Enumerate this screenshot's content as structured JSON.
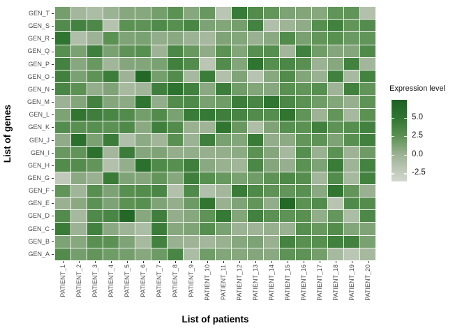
{
  "colors": {
    "axis_text": "#4d4d4d",
    "title_text": "#000000",
    "tick_mark": "#333333",
    "grid_gap": "#f7f7f5",
    "background": "#ffffff"
  },
  "chart_data": {
    "type": "heatmap",
    "title": "",
    "xlabel": "List of patients",
    "ylabel": "List of genes",
    "legend": {
      "title": "Expression level",
      "position": "right",
      "ticks": [
        {
          "label": "5.0",
          "value": 5.0
        },
        {
          "label": "2.5",
          "value": 2.5
        },
        {
          "label": "0.0",
          "value": 0.0
        },
        {
          "label": "-2.5",
          "value": -2.5
        }
      ],
      "domain": [
        -3.6,
        7.4
      ]
    },
    "color_scale": {
      "stops": [
        {
          "value": -3.6,
          "color": "#d3d6ce"
        },
        {
          "value": -2.5,
          "color": "#c5cdbf"
        },
        {
          "value": 0.0,
          "color": "#9cb294"
        },
        {
          "value": 2.5,
          "color": "#5b9153"
        },
        {
          "value": 5.0,
          "color": "#2f7430"
        },
        {
          "value": 7.4,
          "color": "#1e6023"
        }
      ]
    },
    "patients": [
      "PATIENT_1",
      "PATIENT_2",
      "PATIENT_3",
      "PATIENT_4",
      "PATIENT_5",
      "PATIENT_6",
      "PATIENT_7",
      "PATIENT_8",
      "PATIENT_9",
      "PATIENT_10",
      "PATIENT_11",
      "PATIENT_12",
      "PATIENT_13",
      "PATIENT_14",
      "PATIENT_15",
      "PATIENT_16",
      "PATIENT_17",
      "PATIENT_18",
      "PATIENT_19",
      "PATIENT_20"
    ],
    "genes_top_to_bottom": [
      "GEN_T",
      "GEN_S",
      "GEN_R",
      "GEN_Q",
      "GEN_P",
      "GEN_O",
      "GEN_N",
      "GEN_M",
      "GEN_L",
      "GEN_K",
      "GEN_J",
      "GEN_I",
      "GEN_H",
      "GEN_G",
      "GEN_F",
      "GEN_E",
      "GEN_D",
      "GEN_C",
      "GEN_B",
      "GEN_A"
    ],
    "values_by_row_top_to_bottom": [
      [
        1.5,
        -0.5,
        -1.0,
        0.0,
        0.8,
        0.8,
        1.5,
        2.5,
        0.8,
        2.0,
        -1.8,
        4.5,
        3.0,
        2.2,
        1.2,
        1.0,
        0.8,
        2.3,
        2.3,
        -1.4
      ],
      [
        3.0,
        3.8,
        3.3,
        -1.5,
        2.5,
        2.4,
        3.1,
        2.7,
        3.5,
        1.2,
        1.0,
        1.5,
        3.8,
        -1.2,
        -0.2,
        0.5,
        2.8,
        3.9,
        2.2,
        2.9
      ],
      [
        5.0,
        -1.2,
        -0.1,
        2.5,
        1.1,
        1.3,
        0.4,
        0.7,
        0.0,
        -0.6,
        1.1,
        1.0,
        0.1,
        0.7,
        3.0,
        1.4,
        2.2,
        2.6,
        1.9,
        2.3
      ],
      [
        2.7,
        1.3,
        4.1,
        1.3,
        2.4,
        2.7,
        -0.1,
        3.4,
        2.0,
        0.5,
        2.5,
        1.0,
        2.7,
        2.8,
        -0.4,
        4.0,
        1.7,
        0.9,
        0.9,
        3.1
      ],
      [
        3.8,
        0.8,
        2.0,
        -0.3,
        0.9,
        1.0,
        1.3,
        4.0,
        3.0,
        -1.8,
        3.0,
        1.0,
        5.0,
        2.8,
        3.4,
        2.6,
        0.0,
        0.8,
        3.9,
        -0.4
      ],
      [
        4.0,
        1.3,
        2.4,
        4.2,
        -0.1,
        6.5,
        1.5,
        3.0,
        -0.6,
        4.3,
        -1.3,
        1.1,
        -1.6,
        0.8,
        3.0,
        1.0,
        0.1,
        4.0,
        -0.7,
        3.8
      ],
      [
        3.5,
        2.5,
        0.3,
        1.1,
        -0.7,
        -0.3,
        4.1,
        5.3,
        4.0,
        0.7,
        4.2,
        1.7,
        1.0,
        0.8,
        2.6,
        2.2,
        2.7,
        -0.2,
        4.0,
        2.3
      ],
      [
        0.0,
        1.0,
        3.9,
        0.9,
        0.6,
        5.0,
        0.4,
        3.0,
        3.1,
        1.4,
        1.7,
        4.2,
        3.5,
        5.0,
        3.4,
        2.5,
        1.7,
        1.0,
        0.2,
        2.4
      ],
      [
        1.2,
        4.9,
        4.1,
        3.5,
        3.0,
        1.5,
        3.0,
        1.3,
        4.4,
        4.6,
        4.1,
        3.6,
        3.0,
        2.8,
        4.9,
        2.3,
        -0.1,
        2.2,
        -0.6,
        2.5
      ],
      [
        2.9,
        2.6,
        2.7,
        2.5,
        3.1,
        0.7,
        4.1,
        3.0,
        0.1,
        -0.2,
        4.9,
        2.0,
        -1.1,
        1.1,
        2.7,
        2.5,
        4.0,
        2.4,
        2.8,
        3.9
      ],
      [
        0.5,
        5.5,
        1.3,
        4.3,
        -1.2,
        0.6,
        -0.3,
        2.6,
        0.0,
        4.1,
        1.4,
        1.0,
        4.4,
        0.4,
        0.6,
        2.2,
        2.4,
        1.2,
        2.6,
        4.0
      ],
      [
        2.0,
        2.3,
        5.5,
        -0.5,
        4.3,
        0.9,
        1.1,
        0.3,
        0.4,
        0.2,
        0.3,
        0.6,
        2.5,
        0.9,
        -0.6,
        2.8,
        0.1,
        2.5,
        -0.1,
        1.8
      ],
      [
        3.0,
        2.9,
        2.2,
        -1.4,
        0.3,
        5.5,
        3.1,
        2.7,
        4.1,
        0.7,
        0.1,
        -0.3,
        3.4,
        0.9,
        0.2,
        2.5,
        1.2,
        4.4,
        -0.2,
        3.8
      ],
      [
        -2.2,
        0.7,
        0.1,
        4.4,
        1.1,
        0.9,
        2.2,
        0.8,
        4.1,
        2.7,
        2.0,
        1.3,
        1.7,
        2.4,
        3.2,
        2.8,
        -0.4,
        3.0,
        -0.6,
        3.9
      ],
      [
        2.3,
        -0.3,
        2.7,
        1.2,
        2.7,
        2.9,
        3.5,
        -1.4,
        3.1,
        -1.3,
        -0.5,
        4.4,
        3.2,
        2.4,
        2.2,
        2.6,
        0.7,
        4.9,
        2.2,
        0.1
      ],
      [
        0.1,
        0.7,
        2.5,
        1.2,
        2.5,
        2.7,
        1.1,
        0.3,
        1.8,
        4.9,
        0.1,
        1.1,
        2.2,
        0.4,
        6.5,
        2.5,
        3.0,
        -1.7,
        3.1,
        2.9
      ],
      [
        3.0,
        -0.6,
        3.1,
        3.5,
        6.5,
        0.8,
        4.1,
        0.3,
        0.8,
        2.4,
        4.6,
        1.0,
        3.9,
        2.5,
        2.4,
        2.6,
        0.4,
        2.1,
        -1.0,
        3.3
      ],
      [
        4.4,
        0.0,
        3.9,
        0.7,
        -0.2,
        -1.0,
        4.3,
        0.8,
        1.1,
        2.8,
        1.3,
        0.0,
        -0.2,
        0.2,
        0.1,
        2.8,
        2.0,
        2.9,
        1.0,
        1.1
      ],
      [
        1.2,
        0.8,
        2.6,
        2.5,
        1.1,
        -0.7,
        3.9,
        0.1,
        -0.2,
        -0.5,
        0.1,
        0.8,
        1.2,
        0.1,
        3.7,
        2.6,
        2.7,
        4.0,
        3.9,
        1.3
      ],
      [
        3.0,
        1.5,
        2.2,
        1.7,
        1.5,
        0.8,
        1.8,
        3.5,
        -1.0,
        1.7,
        1.0,
        0.8,
        0.9,
        0.7,
        2.4,
        2.4,
        1.5,
        -0.7,
        -1.9,
        -0.6
      ]
    ]
  }
}
